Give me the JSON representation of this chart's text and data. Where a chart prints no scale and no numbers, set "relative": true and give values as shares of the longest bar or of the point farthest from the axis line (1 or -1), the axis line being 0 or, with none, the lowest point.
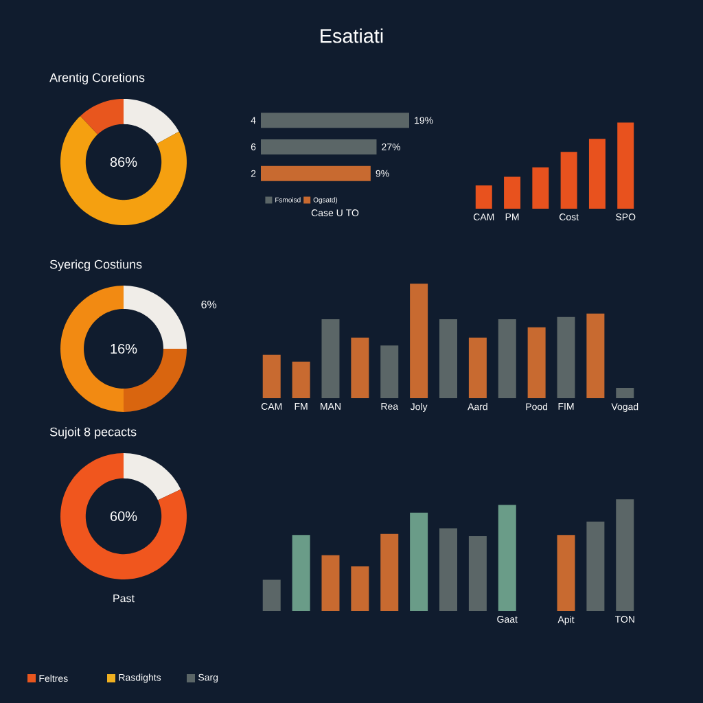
{
  "chart_data": [
    {
      "type": "donut",
      "title": "Arentig Coretions",
      "categories": [
        null,
        null,
        null
      ],
      "values": [
        17,
        71,
        12
      ],
      "colors": [
        "#f0ede8",
        "#f5a010",
        "#e8561e"
      ],
      "annotations": [
        "86%"
      ]
    },
    {
      "type": "bar",
      "orientation": "horizontal",
      "relative": true,
      "categories": [
        "4",
        "6",
        "2"
      ],
      "xlabel": "Case U TO",
      "legend": "bottom",
      "series": [
        {
          "name": "Fsmoisd",
          "color": "#5b6667",
          "values": [
            1,
            0.78,
            null
          ]
        },
        {
          "name": "Ogsatd)",
          "color": "#c86a30",
          "values": [
            null,
            null,
            0.74
          ]
        }
      ],
      "value_labels": [
        "19%",
        "27%",
        "9%"
      ]
    },
    {
      "type": "bar",
      "relative": true,
      "categories": [
        "CAM",
        "PM",
        null,
        "Cost",
        null,
        "SPO"
      ],
      "values": [
        0.27,
        0.37,
        0.48,
        0.66,
        0.81,
        1
      ],
      "color": "#e8521e"
    },
    {
      "type": "donut",
      "title": "Syericg Costiuns",
      "categories": [
        null,
        null,
        null
      ],
      "values": [
        25,
        25,
        50
      ],
      "colors": [
        "#f0ede8",
        "#d9650f",
        "#f28a12"
      ],
      "annotations": [
        "16%",
        "6%"
      ]
    },
    {
      "type": "bar",
      "relative": true,
      "categories": [
        "CAM",
        "FM",
        "MAN",
        null,
        "Rea",
        "Joly",
        null,
        "Aard",
        null,
        "Pood",
        "FIM",
        null,
        "Vogad"
      ],
      "values": [
        0.38,
        0.32,
        0.69,
        0.53,
        0.46,
        1,
        0.69,
        0.53,
        0.69,
        0.62,
        0.71,
        0.74,
        0.09
      ],
      "colors": [
        "#c86a30",
        "#c86a30",
        "#5b6667",
        "#c86a30",
        "#5b6667",
        "#c86a30",
        "#5b6667",
        "#c86a30",
        "#5b6667",
        "#c86a30",
        "#5b6667",
        "#c86a30",
        "#5b6667"
      ]
    },
    {
      "type": "donut",
      "title": "Sujoit 8 pecacts",
      "categories": [
        null,
        null
      ],
      "values": [
        18,
        82
      ],
      "colors": [
        "#f0ede8",
        "#f0561e"
      ],
      "annotations": [
        "60%",
        "Past"
      ]
    },
    {
      "type": "bar",
      "relative": true,
      "categories": [
        null,
        null,
        null,
        null,
        null,
        null,
        null,
        null,
        "Gaat",
        null,
        "Apit",
        null,
        "TON"
      ],
      "values": [
        0.28,
        0.68,
        0.5,
        0.4,
        0.69,
        0.88,
        0.74,
        0.67,
        0.95,
        null,
        0.68,
        0.8,
        1
      ],
      "colors": [
        "#5b6667",
        "#6a9c88",
        "#c86a30",
        "#c86a30",
        "#c86a30",
        "#6a9c88",
        "#5b6667",
        "#5b6667",
        "#6a9c88",
        "#5b6667",
        "#c86a30",
        "#5b6667",
        "#5b6667"
      ]
    },
    {
      "type": "other",
      "title": "Esatiati",
      "categories": [
        "Feltres",
        "Rasdights",
        "Sarg"
      ],
      "colors": [
        "#e8561e",
        "#f0b020",
        "#5b6667"
      ]
    }
  ]
}
